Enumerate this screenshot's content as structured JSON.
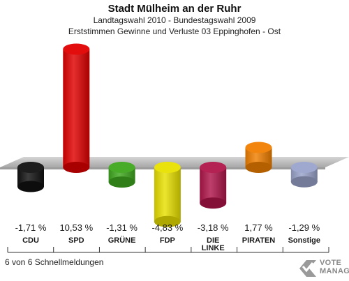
{
  "header": {
    "title": "Stadt Mülheim an der Ruhr",
    "subtitle1": "Landtagswahl 2010 - Bundestagswahl 2009",
    "subtitle2": "Erststimmen Gewinne und Verluste 03 Eppinghofen - Ost"
  },
  "footer": {
    "reports": "6 von 6 Schnellmeldungen"
  },
  "logo": {
    "line1": "VOTE",
    "line2": "MANAGER"
  },
  "chart_data": {
    "type": "bar",
    "title": "Stadt Mülheim an der Ruhr",
    "categories": [
      "CDU",
      "SPD",
      "GRÜNE",
      "FDP",
      "DIE LINKE",
      "PIRATEN",
      "Sonstige"
    ],
    "category_labels": [
      [
        "CDU"
      ],
      [
        "SPD"
      ],
      [
        "GRÜNE"
      ],
      [
        "FDP"
      ],
      [
        "DIE",
        "LINKE"
      ],
      [
        "PIRATEN"
      ],
      [
        "Sonstige"
      ]
    ],
    "values": [
      -1.71,
      10.53,
      -1.31,
      -4.83,
      -3.18,
      1.77,
      -1.29
    ],
    "value_labels": [
      "-1,71 %",
      "10,53 %",
      "-1,31 %",
      "-4,83 %",
      "-3,18 %",
      "1,77 %",
      "-1,29 %"
    ],
    "colors": [
      "#111111",
      "#e00000",
      "#3fa81e",
      "#e8e000",
      "#b0154a",
      "#f07f00",
      "#9aa4cc"
    ],
    "ylim": [
      -6,
      11
    ],
    "grid": false,
    "legend": "none"
  }
}
